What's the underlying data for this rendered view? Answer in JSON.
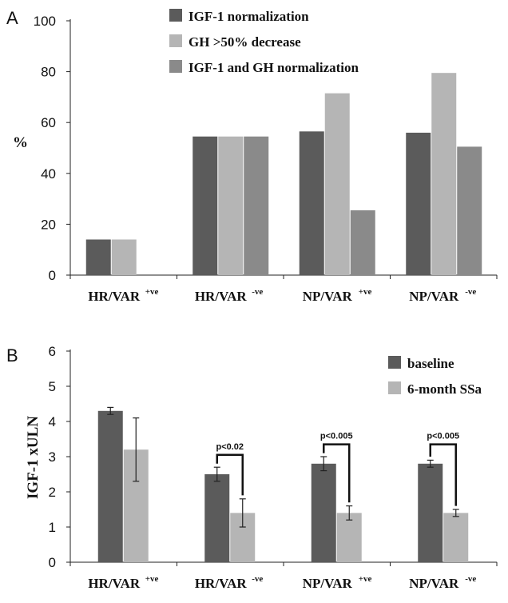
{
  "colors": {
    "dark": "#5b5b5b",
    "light": "#b5b5b5",
    "mid": "#8a8a8a"
  },
  "chart_data": [
    {
      "panel_label": "A",
      "type": "bar",
      "ylabel": "%",
      "ylim": [
        0,
        100
      ],
      "yticks": [
        0,
        20,
        40,
        60,
        80,
        100
      ],
      "categories": [
        {
          "base": "HR/VAR",
          "sup": "+ve"
        },
        {
          "base": "HR/VAR",
          "sup": "-ve"
        },
        {
          "base": "NP/VAR",
          "sup": "+ve"
        },
        {
          "base": "NP/VAR",
          "sup": "-ve"
        }
      ],
      "legend_position": "top",
      "series": [
        {
          "name": "IGF-1 normalization",
          "color": "#5b5b5b",
          "values": [
            14,
            54.5,
            56.5,
            56
          ]
        },
        {
          "name": "GH >50% decrease",
          "color": "#b5b5b5",
          "values": [
            14,
            54.5,
            71.5,
            79.5
          ]
        },
        {
          "name": "IGF-1 and GH normalization",
          "color": "#8a8a8a",
          "values": [
            0,
            54.5,
            25.5,
            50.5
          ]
        }
      ]
    },
    {
      "panel_label": "B",
      "type": "bar",
      "ylabel": "IGF-1 xULN",
      "ylim": [
        0,
        6
      ],
      "yticks": [
        0,
        1,
        2,
        3,
        4,
        5,
        6
      ],
      "categories": [
        {
          "base": "HR/VAR",
          "sup": "+ve"
        },
        {
          "base": "HR/VAR",
          "sup": "-ve"
        },
        {
          "base": "NP/VAR",
          "sup": "+ve"
        },
        {
          "base": "NP/VAR",
          "sup": "-ve"
        }
      ],
      "legend_position": "top-right",
      "series": [
        {
          "name": "baseline",
          "color": "#5b5b5b",
          "values": [
            4.3,
            2.5,
            2.8,
            2.8
          ],
          "errors": [
            0.1,
            0.2,
            0.2,
            0.1
          ]
        },
        {
          "name": "6-month SSa",
          "color": "#b5b5b5",
          "values": [
            3.2,
            1.4,
            1.4,
            1.4
          ],
          "errors": [
            0.9,
            0.4,
            0.2,
            0.1
          ]
        }
      ],
      "annotations": [
        {
          "category_index": 1,
          "text": "p<0.02"
        },
        {
          "category_index": 2,
          "text": "p<0.005"
        },
        {
          "category_index": 3,
          "text": "p<0.005"
        }
      ]
    }
  ]
}
